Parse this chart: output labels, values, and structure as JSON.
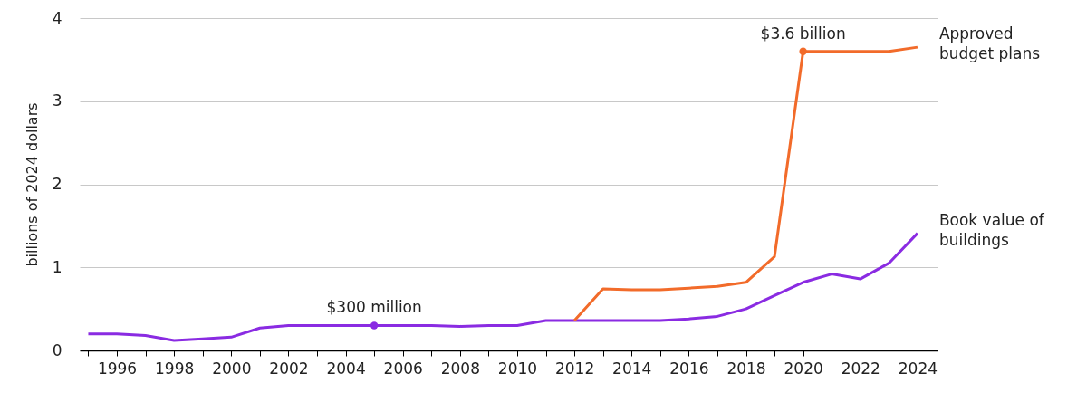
{
  "chart_data": {
    "type": "line",
    "ylabel": "billions of 2024 dollars",
    "x": [
      1995,
      1996,
      1997,
      1998,
      1999,
      2000,
      2001,
      2002,
      2003,
      2004,
      2005,
      2006,
      2007,
      2008,
      2009,
      2010,
      2011,
      2012,
      2013,
      2014,
      2015,
      2016,
      2017,
      2018,
      2019,
      2020,
      2021,
      2022,
      2023,
      2024
    ],
    "series": [
      {
        "name": "Book value of buildings",
        "color": "#8a2be2",
        "values": [
          0.2,
          0.2,
          0.18,
          0.12,
          0.14,
          0.16,
          0.27,
          0.3,
          0.3,
          0.3,
          0.3,
          0.3,
          0.3,
          0.29,
          0.3,
          0.3,
          0.36,
          0.36,
          0.36,
          0.36,
          0.36,
          0.38,
          0.41,
          0.5,
          0.66,
          0.82,
          0.92,
          0.86,
          1.05,
          1.41
        ]
      },
      {
        "name": "Approved budget plans",
        "color": "#f26b2a",
        "values": [
          null,
          null,
          null,
          null,
          null,
          null,
          null,
          null,
          null,
          null,
          null,
          null,
          null,
          null,
          null,
          null,
          null,
          0.36,
          0.74,
          0.73,
          0.73,
          0.75,
          0.77,
          0.82,
          1.13,
          3.6,
          3.6,
          3.6,
          3.6,
          3.65
        ]
      }
    ],
    "xlim": [
      1994.7,
      2024.7
    ],
    "xticks": [
      {
        "value": 1995,
        "label": null
      },
      1996,
      {
        "value": 1997,
        "label": null
      },
      1998,
      {
        "value": 1999,
        "label": null
      },
      2000,
      {
        "value": 2001,
        "label": null
      },
      2002,
      {
        "value": 2003,
        "label": null
      },
      2004,
      {
        "value": 2005,
        "label": null
      },
      2006,
      {
        "value": 2007,
        "label": null
      },
      2008,
      {
        "value": 2009,
        "label": null
      },
      2010,
      {
        "value": 2011,
        "label": null
      },
      2012,
      {
        "value": 2013,
        "label": null
      },
      2014,
      {
        "value": 2015,
        "label": null
      },
      2016,
      {
        "value": 2017,
        "label": null
      },
      2018,
      {
        "value": 2019,
        "label": null
      },
      2020,
      {
        "value": 2021,
        "label": null
      },
      2022,
      {
        "value": 2023,
        "label": null
      },
      2024
    ],
    "ylim": [
      0,
      4
    ],
    "yticks": [
      0,
      1,
      2,
      3,
      4
    ],
    "grid": "y",
    "legend": "right",
    "annotations": [
      {
        "text": "$300 million",
        "x": 2005,
        "y": 0.3
      },
      {
        "text": "$3.6 billion",
        "x": 2020,
        "y": 3.6
      }
    ]
  }
}
